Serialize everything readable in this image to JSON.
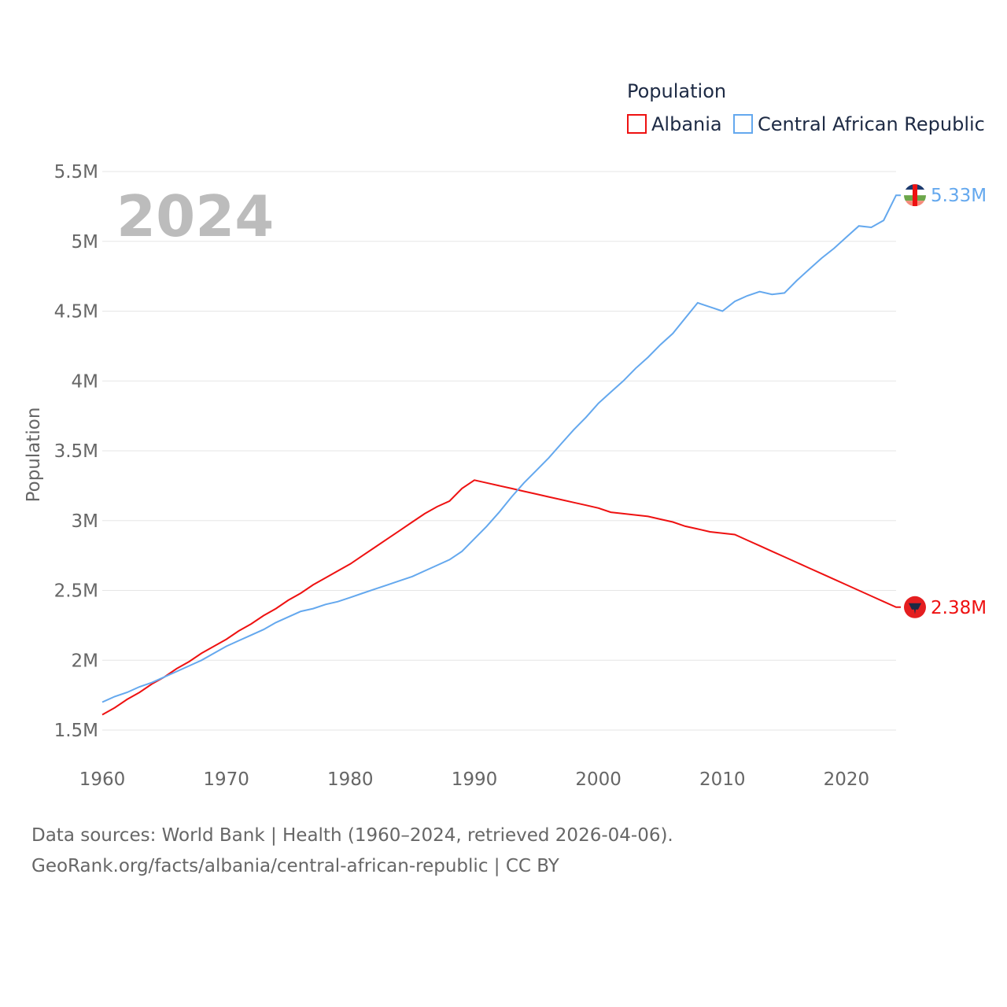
{
  "chart_data": {
    "type": "line",
    "title": "Population",
    "ylabel": "Population",
    "xlabel": "",
    "year_overlay": "2024",
    "x": [
      1960,
      1961,
      1962,
      1963,
      1964,
      1965,
      1966,
      1967,
      1968,
      1969,
      1970,
      1971,
      1972,
      1973,
      1974,
      1975,
      1976,
      1977,
      1978,
      1979,
      1980,
      1981,
      1982,
      1983,
      1984,
      1985,
      1986,
      1987,
      1988,
      1989,
      1990,
      1991,
      1992,
      1993,
      1994,
      1995,
      1996,
      1997,
      1998,
      1999,
      2000,
      2001,
      2002,
      2003,
      2004,
      2005,
      2006,
      2007,
      2008,
      2009,
      2010,
      2011,
      2012,
      2013,
      2014,
      2015,
      2016,
      2017,
      2018,
      2019,
      2020,
      2021,
      2022,
      2023,
      2024
    ],
    "xlim": [
      1960,
      2024
    ],
    "ylim": [
      1.5,
      5.5
    ],
    "y_unit": "millions",
    "x_ticks": [
      "1960",
      "1970",
      "1980",
      "1990",
      "2000",
      "2010",
      "2020"
    ],
    "y_ticks": [
      {
        "value": 1.5,
        "label": "1.5M"
      },
      {
        "value": 2,
        "label": "2M"
      },
      {
        "value": 2.5,
        "label": "2.5M"
      },
      {
        "value": 3,
        "label": "3M"
      },
      {
        "value": 3.5,
        "label": "3.5M"
      },
      {
        "value": 4,
        "label": "4M"
      },
      {
        "value": 4.5,
        "label": "4.5M"
      },
      {
        "value": 5,
        "label": "5M"
      },
      {
        "value": 5.5,
        "label": "5.5M"
      }
    ],
    "grid": true,
    "legend_placement": "top-right",
    "series": [
      {
        "name": "Albania",
        "color": "#ee1111",
        "end_label": "2.38M",
        "flag_icon": "albania-flag",
        "values": [
          1.61,
          1.66,
          1.72,
          1.77,
          1.83,
          1.88,
          1.94,
          1.99,
          2.05,
          2.1,
          2.15,
          2.21,
          2.26,
          2.32,
          2.37,
          2.43,
          2.48,
          2.54,
          2.59,
          2.64,
          2.69,
          2.75,
          2.81,
          2.87,
          2.93,
          2.99,
          3.05,
          3.1,
          3.14,
          3.23,
          3.29,
          3.27,
          3.25,
          3.23,
          3.21,
          3.19,
          3.17,
          3.15,
          3.13,
          3.11,
          3.09,
          3.06,
          3.05,
          3.04,
          3.03,
          3.01,
          2.99,
          2.96,
          2.94,
          2.92,
          2.91,
          2.9,
          2.86,
          2.82,
          2.78,
          2.74,
          2.7,
          2.66,
          2.62,
          2.58,
          2.54,
          2.5,
          2.46,
          2.42,
          2.38
        ]
      },
      {
        "name": "Central African Republic",
        "color": "#64a8ee",
        "end_label": "5.33M",
        "flag_icon": "central-african-republic-flag",
        "values": [
          1.7,
          1.74,
          1.77,
          1.81,
          1.84,
          1.88,
          1.92,
          1.96,
          2.0,
          2.05,
          2.1,
          2.14,
          2.18,
          2.22,
          2.27,
          2.31,
          2.35,
          2.37,
          2.4,
          2.42,
          2.45,
          2.48,
          2.51,
          2.54,
          2.57,
          2.6,
          2.64,
          2.68,
          2.72,
          2.78,
          2.87,
          2.96,
          3.06,
          3.17,
          3.27,
          3.36,
          3.45,
          3.55,
          3.65,
          3.74,
          3.84,
          3.92,
          4.0,
          4.09,
          4.17,
          4.26,
          4.34,
          4.45,
          4.56,
          4.53,
          4.5,
          4.57,
          4.61,
          4.64,
          4.62,
          4.63,
          4.72,
          4.8,
          4.88,
          4.95,
          5.03,
          5.11,
          5.1,
          5.15,
          5.33
        ]
      }
    ]
  },
  "footer": {
    "line1": "Data sources: World Bank | Health (1960–2024, retrieved 2026-04-06).",
    "line2": "GeoRank.org/facts/albania/central-african-republic | CC BY"
  }
}
